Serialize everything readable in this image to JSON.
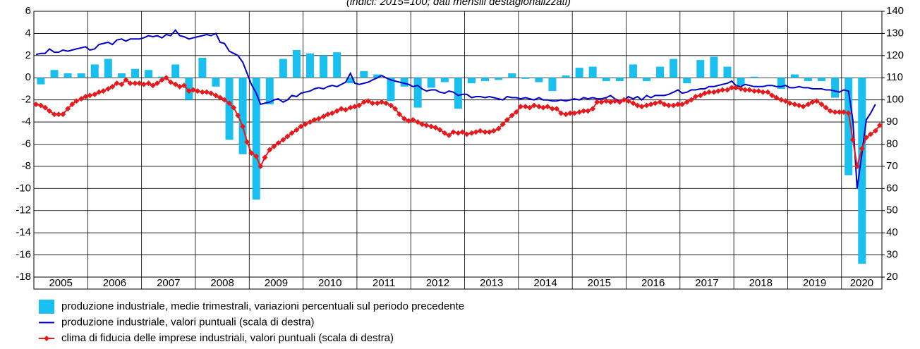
{
  "chart_data": {
    "type": "combo",
    "subtitle": "(indici: 2015=100; dati mensili destagionalizzati)",
    "xlim": [
      2005,
      2020.75
    ],
    "xticks": [
      2005,
      2006,
      2007,
      2008,
      2009,
      2010,
      2011,
      2012,
      2013,
      2014,
      2015,
      2016,
      2017,
      2018,
      2019,
      2020
    ],
    "categories": [
      "2005",
      "2006",
      "2007",
      "2008",
      "2009",
      "2010",
      "2011",
      "2012",
      "2013",
      "2014",
      "2015",
      "2016",
      "2017",
      "2018",
      "2019",
      "2020"
    ],
    "ylim": [
      -18,
      6
    ],
    "yticks": [
      -18,
      -16,
      -14,
      -12,
      -10,
      -8,
      -6,
      -4,
      -2,
      0,
      2,
      4,
      6
    ],
    "y2lim": [
      20,
      140
    ],
    "y2ticks": [
      20,
      30,
      40,
      50,
      60,
      70,
      80,
      90,
      100,
      110,
      120,
      130,
      140
    ],
    "grid": true,
    "legend": "bottom-left",
    "x": [
      2005.04,
      2005.13,
      2005.21,
      2005.29,
      2005.38,
      2005.46,
      2005.54,
      2005.63,
      2005.71,
      2005.79,
      2005.88,
      2005.96,
      2006.04,
      2006.13,
      2006.21,
      2006.29,
      2006.38,
      2006.46,
      2006.54,
      2006.63,
      2006.71,
      2006.79,
      2006.88,
      2006.96,
      2007.04,
      2007.13,
      2007.21,
      2007.29,
      2007.38,
      2007.46,
      2007.54,
      2007.63,
      2007.71,
      2007.79,
      2007.88,
      2007.96,
      2008.04,
      2008.13,
      2008.21,
      2008.29,
      2008.38,
      2008.46,
      2008.54,
      2008.63,
      2008.71,
      2008.79,
      2008.88,
      2008.96,
      2009.04,
      2009.13,
      2009.21,
      2009.29,
      2009.38,
      2009.46,
      2009.54,
      2009.63,
      2009.71,
      2009.79,
      2009.88,
      2009.96,
      2010.04,
      2010.13,
      2010.21,
      2010.29,
      2010.38,
      2010.46,
      2010.54,
      2010.63,
      2010.71,
      2010.79,
      2010.88,
      2010.96,
      2011.04,
      2011.13,
      2011.21,
      2011.29,
      2011.38,
      2011.46,
      2011.54,
      2011.63,
      2011.71,
      2011.79,
      2011.88,
      2011.96,
      2012.04,
      2012.13,
      2012.21,
      2012.29,
      2012.38,
      2012.46,
      2012.54,
      2012.63,
      2012.71,
      2012.79,
      2012.88,
      2012.96,
      2013.04,
      2013.13,
      2013.21,
      2013.29,
      2013.38,
      2013.46,
      2013.54,
      2013.63,
      2013.71,
      2013.79,
      2013.88,
      2013.96,
      2014.04,
      2014.13,
      2014.21,
      2014.29,
      2014.38,
      2014.46,
      2014.54,
      2014.63,
      2014.71,
      2014.79,
      2014.88,
      2014.96,
      2015.04,
      2015.13,
      2015.21,
      2015.29,
      2015.38,
      2015.46,
      2015.54,
      2015.63,
      2015.71,
      2015.79,
      2015.88,
      2015.96,
      2016.04,
      2016.13,
      2016.21,
      2016.29,
      2016.38,
      2016.46,
      2016.54,
      2016.63,
      2016.71,
      2016.79,
      2016.88,
      2016.96,
      2017.04,
      2017.13,
      2017.21,
      2017.29,
      2017.38,
      2017.46,
      2017.54,
      2017.63,
      2017.71,
      2017.79,
      2017.88,
      2017.96,
      2018.04,
      2018.13,
      2018.21,
      2018.29,
      2018.38,
      2018.46,
      2018.54,
      2018.63,
      2018.71,
      2018.79,
      2018.88,
      2018.96,
      2019.04,
      2019.13,
      2019.21,
      2019.29,
      2019.38,
      2019.46,
      2019.54,
      2019.63,
      2019.71,
      2019.79,
      2019.88,
      2019.96,
      2020.04,
      2020.13,
      2020.21,
      2020.29,
      2020.38,
      2020.46,
      2020.54,
      2020.63,
      2020.71
    ],
    "series": [
      {
        "name": "produzione industriale, medie trimestrali, variazioni percentuali sul periodo precedente",
        "type": "bar",
        "color": "#19c0ef",
        "x": [
          2005.13,
          2005.38,
          2005.63,
          2005.88,
          2006.13,
          2006.38,
          2006.63,
          2006.88,
          2007.13,
          2007.38,
          2007.63,
          2007.88,
          2008.13,
          2008.38,
          2008.63,
          2008.88,
          2009.13,
          2009.38,
          2009.63,
          2009.88,
          2010.13,
          2010.38,
          2010.63,
          2010.88,
          2011.13,
          2011.38,
          2011.63,
          2011.88,
          2012.13,
          2012.38,
          2012.63,
          2012.88,
          2013.13,
          2013.38,
          2013.63,
          2013.88,
          2014.13,
          2014.38,
          2014.63,
          2014.88,
          2015.13,
          2015.38,
          2015.63,
          2015.88,
          2016.13,
          2016.38,
          2016.63,
          2016.88,
          2017.13,
          2017.38,
          2017.63,
          2017.88,
          2018.13,
          2018.38,
          2018.63,
          2018.88,
          2019.13,
          2019.38,
          2019.63,
          2019.88,
          2020.13,
          2020.38
        ],
        "values": [
          -0.6,
          0.7,
          0.4,
          0.4,
          1.2,
          1.7,
          0.4,
          0.8,
          0.7,
          0.1,
          1.2,
          -2.0,
          1.8,
          -0.8,
          -5.6,
          -6.9,
          -11.0,
          -2.4,
          1.7,
          2.5,
          2.2,
          2.0,
          2.3,
          -0.5,
          0.6,
          0.3,
          -2.1,
          -0.8,
          -2.7,
          -0.9,
          -0.4,
          -2.8,
          -0.5,
          -0.3,
          -0.2,
          0.4,
          -0.1,
          -0.4,
          -1.2,
          0.2,
          0.9,
          1.0,
          -0.3,
          -0.3,
          1.2,
          -0.3,
          1.0,
          1.7,
          -0.5,
          1.6,
          1.9,
          1.0,
          -0.7,
          0.1,
          0.0,
          -1.0,
          0.3,
          -0.3,
          -0.3,
          -1.8,
          -8.8,
          -16.8
        ]
      },
      {
        "name": "produzione industriale, valori puntuali (scala di destra)",
        "type": "line",
        "axis": "y2",
        "color": "#0000cc",
        "values": [
          120.5,
          121,
          121,
          123,
          121.5,
          121.5,
          122.5,
          122,
          122.5,
          123,
          123.5,
          124,
          122.5,
          123,
          125,
          125.5,
          126,
          125,
          127,
          127.5,
          126.5,
          127.5,
          127.5,
          127.5,
          128,
          129,
          128.5,
          129,
          128,
          129.5,
          129,
          131.5,
          129,
          128.5,
          127.5,
          128,
          128.5,
          129,
          129.5,
          129,
          130,
          126,
          125.5,
          122,
          121,
          120,
          117,
          112,
          107,
          103,
          98,
          98.5,
          99,
          100,
          100.5,
          99,
          100,
          102,
          101.5,
          103,
          103.5,
          104,
          105,
          105.5,
          105,
          106,
          106.5,
          106,
          107,
          108,
          112,
          107.5,
          107,
          107.5,
          108,
          109,
          110,
          111,
          110,
          109,
          108.5,
          108,
          107.5,
          107,
          106,
          106.5,
          105,
          104,
          104.5,
          104.5,
          103.5,
          103,
          104,
          103.5,
          102,
          102.5,
          102.5,
          101,
          101.5,
          101.5,
          101,
          101.5,
          101,
          100.5,
          100,
          101.5,
          101,
          101,
          100.5,
          101,
          100.5,
          100,
          101,
          100,
          100,
          99.5,
          99.5,
          100,
          99.5,
          100,
          100.5,
          100,
          101,
          100.5,
          101,
          100.5,
          100.5,
          101,
          102,
          100.5,
          99.5,
          99.5,
          101.5,
          100.5,
          101.5,
          100,
          102,
          101,
          102,
          102,
          102,
          102.5,
          103.5,
          104.5,
          103,
          103.5,
          104.5,
          104.5,
          105,
          105,
          106,
          106,
          106.5,
          107,
          107.5,
          108.5,
          106.5,
          106,
          107,
          106.5,
          106,
          106,
          106,
          106.5,
          106.5,
          106,
          106,
          106.5,
          105.5,
          105.5,
          106,
          105.5,
          105.5,
          105,
          105,
          105,
          104.5,
          104.5,
          104,
          103.5,
          104.5,
          104,
          91,
          60,
          76,
          91,
          94,
          98,
          null
        ]
      },
      {
        "name": "clima di fiducia delle imprese industriali, valori puntuali (scala di destra)",
        "type": "line",
        "axis": "y2",
        "color": "#e8191c",
        "marker": "diamond",
        "values": [
          98,
          97.5,
          96.5,
          95,
          93.5,
          93.5,
          93.5,
          96,
          98,
          99.5,
          100.5,
          101.5,
          102,
          102.5,
          103.5,
          104,
          105,
          106,
          107.5,
          107,
          109,
          107.5,
          107.5,
          107.5,
          107,
          107.5,
          106.5,
          107.5,
          109,
          110,
          108,
          107,
          106,
          106.5,
          104,
          104.5,
          104,
          103.5,
          103.5,
          103,
          102,
          101,
          100,
          98.5,
          96.5,
          93,
          88,
          81,
          76,
          74.5,
          70,
          74,
          77.5,
          79,
          80.5,
          82,
          83.5,
          85,
          86.5,
          88,
          89,
          90,
          91,
          91.5,
          92.5,
          93.5,
          94,
          95,
          96,
          95.5,
          96.5,
          97,
          97.5,
          99,
          99.5,
          98.5,
          98.5,
          99,
          98.5,
          97.5,
          96,
          93.5,
          91.5,
          90.5,
          91,
          90,
          89,
          88.5,
          88,
          87.5,
          86.5,
          85,
          84,
          85.5,
          85,
          85.5,
          84.5,
          85,
          85.5,
          86,
          85.5,
          85.5,
          86,
          87,
          89,
          91,
          93,
          94.5,
          97,
          97,
          96.5,
          97.5,
          97,
          96.5,
          97,
          96,
          96,
          94,
          93.5,
          94,
          94,
          94.5,
          95,
          95,
          96,
          99,
          99,
          99.5,
          99,
          99.5,
          99,
          100,
          99.5,
          98.5,
          97.5,
          97,
          97.5,
          98,
          98.5,
          99,
          98,
          97.5,
          97.5,
          98,
          98,
          99,
          100,
          101.5,
          102,
          103,
          103.5,
          103.5,
          104,
          104.5,
          104.5,
          105.5,
          105.5,
          105,
          104.5,
          104.5,
          104,
          104,
          103.5,
          103.5,
          102,
          101,
          100,
          99.5,
          98.5,
          98,
          97.5,
          97,
          98,
          99,
          99.5,
          98,
          96.5,
          95,
          94.5,
          94.5,
          94.5,
          94,
          82,
          70,
          78,
          83,
          84.5,
          86,
          88.5
        ]
      }
    ]
  }
}
